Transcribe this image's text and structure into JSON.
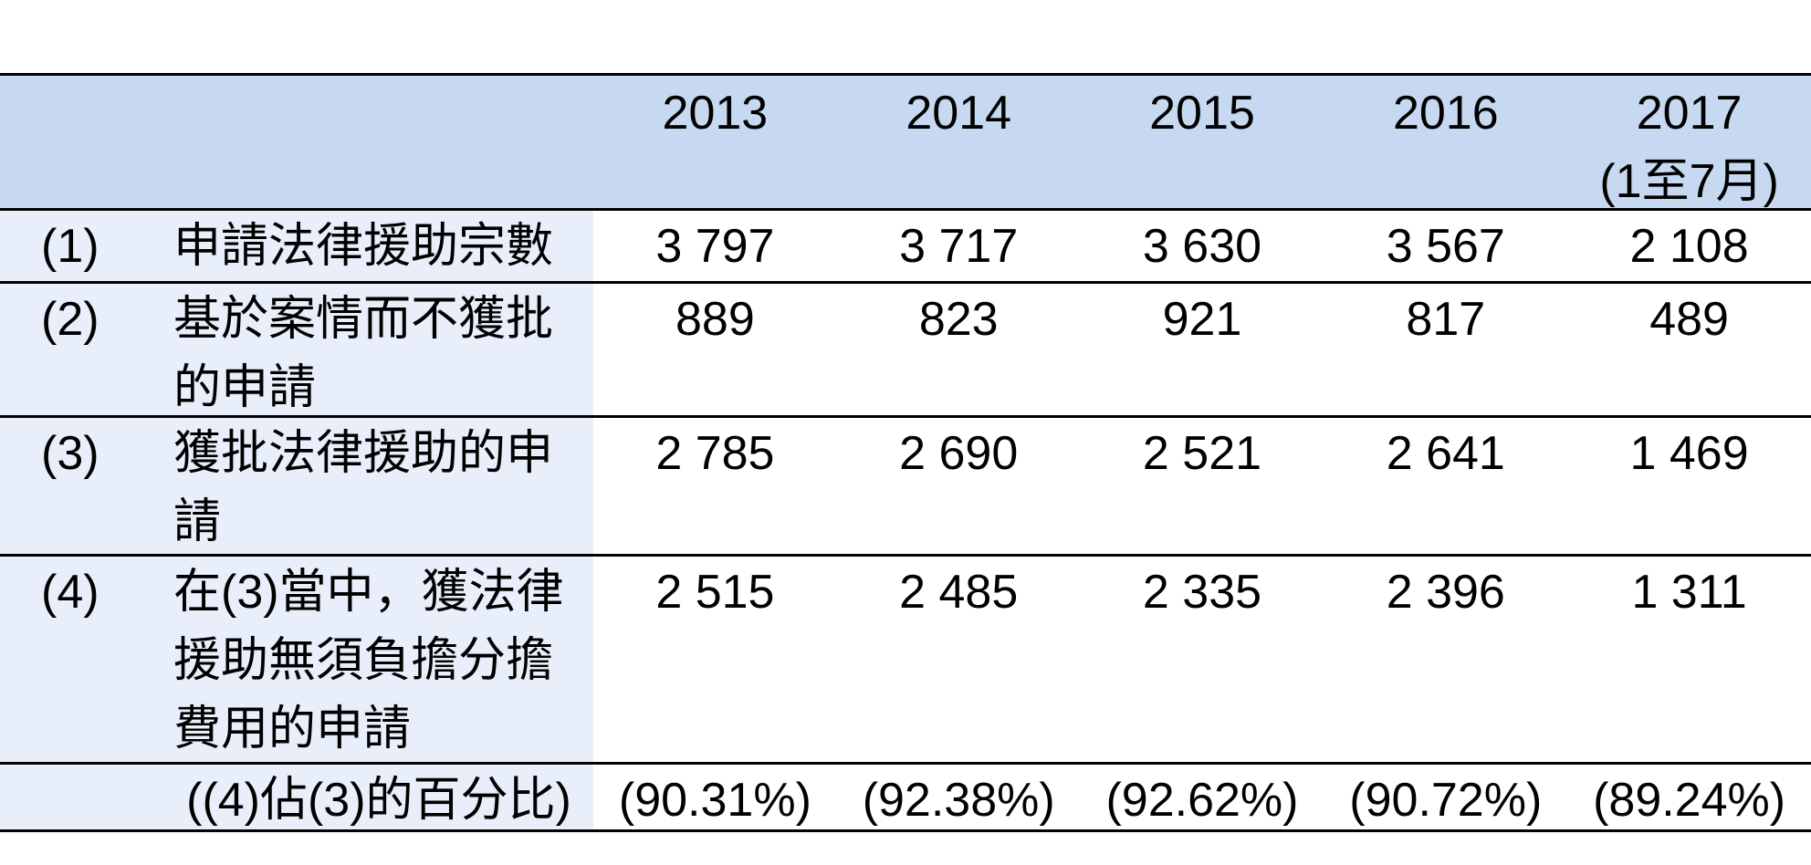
{
  "table": {
    "title_hint": "legal-aid-applications-statistics-table",
    "colors": {
      "header_bg": "#c6d9f0",
      "label_bg": "#e9effa",
      "border": "#000000",
      "text": "#000000"
    },
    "header": {
      "years": [
        "2013",
        "2014",
        "2015",
        "2016",
        "2017"
      ],
      "year5_note": "(1至7月)"
    },
    "rows": [
      {
        "num": "(1)",
        "label": "申請法律援助宗數",
        "values": [
          "3 797",
          "3 717",
          "3 630",
          "3 567",
          "2 108"
        ]
      },
      {
        "num": "(2)",
        "label": "基於案情而不獲批\n的申請",
        "values": [
          "889",
          "823",
          "921",
          "817",
          "489"
        ]
      },
      {
        "num": "(3)",
        "label": "獲批法律援助的申\n請",
        "values": [
          "2 785",
          "2 690",
          "2 521",
          "2 641",
          "1 469"
        ]
      },
      {
        "num": "(4)",
        "label": "在(3)當中，獲法律\n援助無須負擔分擔\n費用的申請",
        "values": [
          "2 515",
          "2 485",
          "2 335",
          "2 396",
          "1 311"
        ]
      },
      {
        "num": "",
        "label": "((4)佔(3)的百分比)",
        "values": [
          "(90.31%)",
          "(92.38%)",
          "(92.62%)",
          "(90.72%)",
          "(89.24%)"
        ]
      }
    ]
  }
}
